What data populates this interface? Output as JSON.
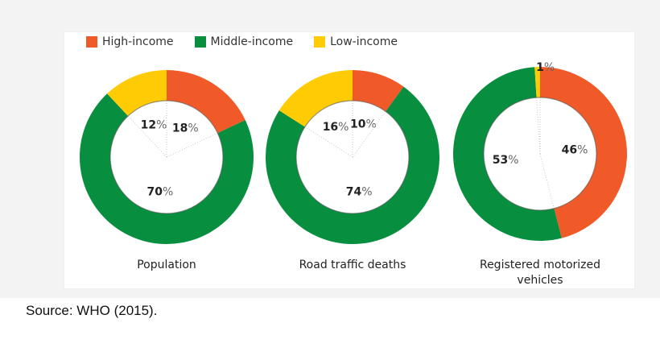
{
  "chart_data": [
    {
      "type": "pie",
      "title": "Population",
      "categories": [
        "High-income",
        "Middle-income",
        "Low-income"
      ],
      "values": [
        18,
        70,
        12
      ]
    },
    {
      "type": "pie",
      "title": "Road traffic deaths",
      "categories": [
        "High-income",
        "Middle-income",
        "Low-income"
      ],
      "values": [
        10,
        74,
        16
      ]
    },
    {
      "type": "pie",
      "title": "Registered motorized vehicles",
      "categories": [
        "High-income",
        "Middle-income",
        "Low-income"
      ],
      "values": [
        46,
        53,
        1
      ]
    }
  ],
  "legend": [
    {
      "label": "High-income",
      "color": "#f05a28"
    },
    {
      "label": "Middle-income",
      "color": "#078f3f"
    },
    {
      "label": "Low-income",
      "color": "#ffcb05"
    }
  ],
  "source": "Source: WHO (2015)."
}
